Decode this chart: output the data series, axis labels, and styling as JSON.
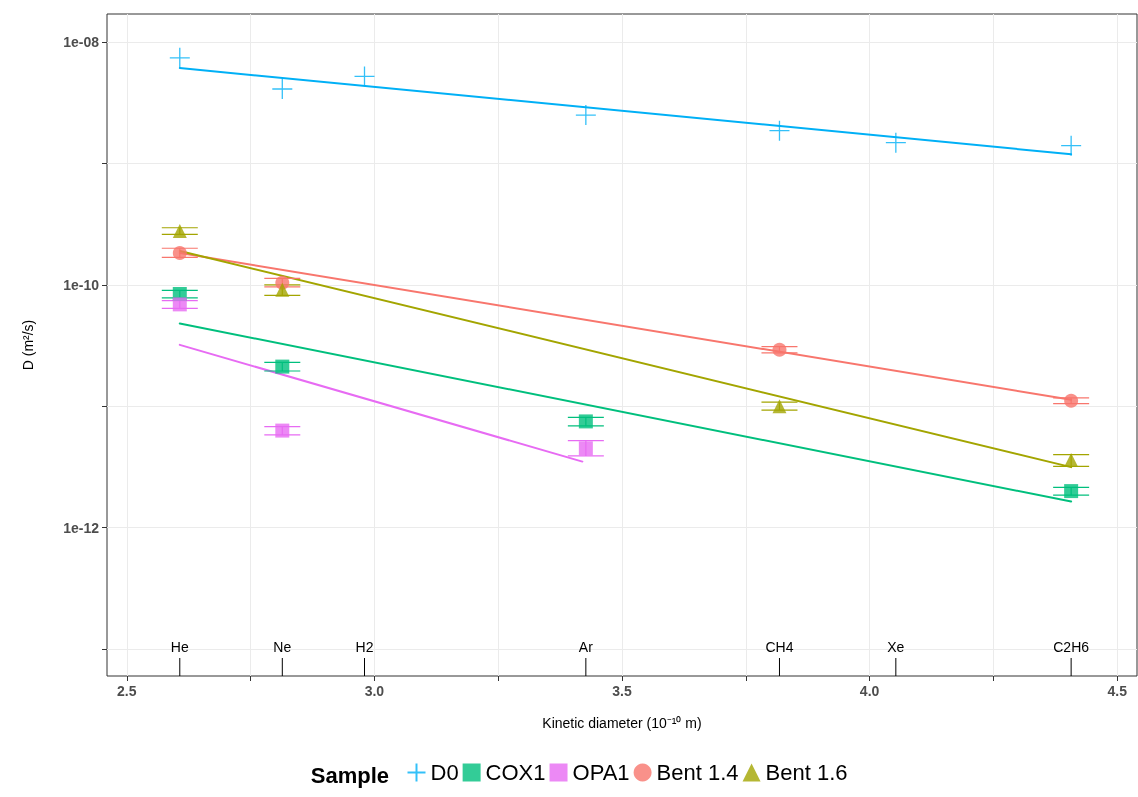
{
  "chart_data": {
    "type": "scatter",
    "xlabel": "Kinetic diameter (10⁻¹⁰ m)",
    "ylabel": "D (m²/s)",
    "legend_title": "Sample",
    "legend": "bottom",
    "grid": true,
    "log": "y",
    "xlim": [
      2.46,
      4.54
    ],
    "xticks": [
      2.5,
      {
        "value": 2.75,
        "label": null
      },
      {
        "value": 3,
        "label": "3.0"
      },
      {
        "value": 3.25,
        "label": null
      },
      3.5,
      {
        "value": 3.75,
        "label": null
      },
      {
        "value": 4,
        "label": "4.0"
      },
      {
        "value": 4.25,
        "label": null
      },
      4.5
    ],
    "ylim": [
      6e-14,
      1.7e-08
    ],
    "yticks": [
      {
        "value": 1e-08,
        "label": "1e-08"
      },
      {
        "value": 1e-09,
        "label": null
      },
      {
        "value": 1e-10,
        "label": "1e-10"
      },
      {
        "value": 1e-11,
        "label": null
      },
      {
        "value": 1e-12,
        "label": "1e-12"
      },
      {
        "value": 1e-13,
        "label": null
      }
    ],
    "series": [
      {
        "name": "D0",
        "type": "scatter",
        "marker": "cross",
        "color": "#00b0f6",
        "x": [
          2.607,
          2.814,
          2.98,
          3.427,
          3.818,
          4.053,
          4.407
        ],
        "values": [
          7.4e-09,
          4.1e-09,
          5.2e-09,
          2.5e-09,
          1.86e-09,
          1.48e-09,
          1.4e-09
        ]
      },
      {
        "name": "COX1",
        "type": "scatter",
        "marker": "square",
        "color": "#00bf7d",
        "x": [
          2.607,
          2.814,
          3.427,
          4.407
        ],
        "values": [
          8.4e-11,
          2.12e-11,
          7.5e-12,
          2e-12
        ],
        "errors": [
          [
            7.8e-11,
            9e-11
          ],
          [
            1.95e-11,
            2.3e-11
          ],
          [
            6.9e-12,
            8.1e-12
          ],
          [
            1.85e-12,
            2.15e-12
          ]
        ]
      },
      {
        "name": "OPA1",
        "type": "scatter",
        "marker": "square",
        "color": "#e76bf3",
        "x": [
          2.607,
          2.814,
          3.427
        ],
        "values": [
          6.9e-11,
          6.3e-12,
          4.5e-12
        ],
        "errors": [
          [
            6.4e-11,
            7.4e-11
          ],
          [
            5.8e-12,
            6.8e-12
          ],
          [
            3.9e-12,
            5.2e-12
          ]
        ]
      },
      {
        "name": "Bent 1.4",
        "type": "scatter",
        "marker": "circle",
        "color": "#f8766d",
        "x": [
          2.607,
          2.814,
          3.818,
          4.407
        ],
        "values": [
          1.83e-10,
          1.04e-10,
          2.92e-11,
          1.11e-11
        ],
        "errors": [
          [
            1.68e-10,
            2e-10
          ],
          [
            9.6e-11,
            1.13e-10
          ],
          [
            2.75e-11,
            3.1e-11
          ],
          [
            1.05e-11,
            1.17e-11
          ]
        ]
      },
      {
        "name": "Bent 1.6",
        "type": "scatter",
        "marker": "triangle",
        "color": "#a3a500",
        "x": [
          2.607,
          2.814,
          3.818,
          4.407
        ],
        "values": [
          2.78e-10,
          9.1e-11,
          1e-11,
          3.6e-12
        ],
        "errors": [
          [
            2.6e-10,
            2.95e-10
          ],
          [
            8.2e-11,
            1e-10
          ],
          [
            9.3e-12,
            1.08e-11
          ],
          [
            3.2e-12,
            4e-12
          ]
        ]
      },
      {
        "type": "line",
        "marker": "none",
        "color": "#00b0f6",
        "x": [
          2.607,
          4.407
        ],
        "values": [
          6.1e-09,
          1.19e-09
        ]
      },
      {
        "type": "line",
        "marker": "none",
        "color": "#00bf7d",
        "x": [
          2.607,
          4.407
        ],
        "values": [
          4.8e-11,
          1.64e-12
        ]
      },
      {
        "type": "line",
        "marker": "none",
        "color": "#e76bf3",
        "x": [
          2.607,
          3.42
        ],
        "values": [
          3.2e-11,
          3.5e-12
        ]
      },
      {
        "type": "line",
        "marker": "none",
        "color": "#f8766d",
        "x": [
          2.607,
          4.407
        ],
        "values": [
          1.83e-10,
          1.13e-11
        ]
      },
      {
        "type": "line",
        "marker": "none",
        "color": "#a3a500",
        "x": [
          2.607,
          4.407
        ],
        "values": [
          1.9e-10,
          3.15e-12
        ]
      }
    ],
    "annotations": [
      {
        "text": "He",
        "x": 2.607
      },
      {
        "text": "Ne",
        "x": 2.814
      },
      {
        "text": "H2",
        "x": 2.98
      },
      {
        "text": "Ar",
        "x": 3.427
      },
      {
        "text": "CH4",
        "x": 3.818
      },
      {
        "text": "Xe",
        "x": 4.053
      },
      {
        "text": "C2H6",
        "x": 4.407
      }
    ]
  }
}
